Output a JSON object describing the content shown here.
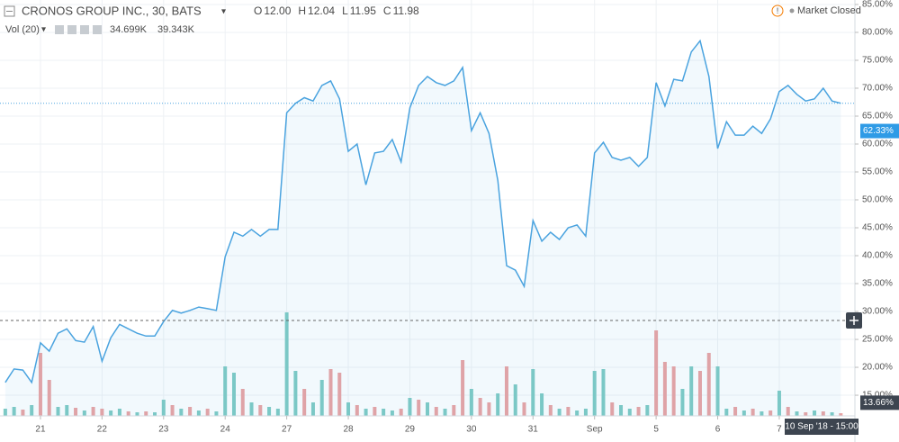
{
  "chart_data": {
    "type": "line",
    "title": "CRONOS GROUP INC., 30, BATS",
    "ohlc": [
      {
        "name": "O",
        "value": "12.00"
      },
      {
        "name": "H",
        "value": "12.04"
      },
      {
        "name": "L",
        "value": "11.95"
      },
      {
        "name": "C",
        "value": "11.98"
      }
    ],
    "status": "Market Closed",
    "volume_title": "Vol (20)",
    "volume_readout": [
      {
        "text": "34.699K",
        "color": "#e57373"
      },
      {
        "text": "39.343K",
        "color": "#f0a04b"
      }
    ],
    "x": [
      0,
      1,
      2,
      3,
      4,
      5,
      6,
      7,
      8,
      9,
      10,
      11,
      12,
      13,
      14,
      15,
      16,
      17,
      18,
      19,
      20,
      21,
      22,
      23,
      24,
      25,
      26,
      27,
      28,
      29,
      30,
      31,
      32,
      33,
      34,
      35,
      36,
      37,
      38,
      39,
      40,
      41,
      42,
      43,
      44,
      45,
      46,
      47,
      48,
      49,
      50,
      51,
      52,
      53,
      54,
      55,
      56,
      57,
      58,
      59,
      60,
      61,
      62,
      63,
      64,
      65,
      66,
      67,
      68,
      69,
      70,
      71,
      72,
      73,
      74,
      75,
      76,
      77,
      78,
      79,
      80,
      81,
      82,
      83,
      84,
      85,
      86,
      87,
      88,
      89,
      90,
      91,
      92,
      93,
      94,
      95
    ],
    "xlim": [
      -0.6,
      96.6
    ],
    "xticks": [
      {
        "value": 4,
        "label": "21"
      },
      {
        "value": 11,
        "label": "22"
      },
      {
        "value": 18,
        "label": "23"
      },
      {
        "value": 25,
        "label": "24"
      },
      {
        "value": 32,
        "label": "27"
      },
      {
        "value": 39,
        "label": "28"
      },
      {
        "value": 46,
        "label": "29"
      },
      {
        "value": 53,
        "label": "30"
      },
      {
        "value": 60,
        "label": "31"
      },
      {
        "value": 67,
        "label": "Sep"
      },
      {
        "value": 74,
        "label": "5"
      },
      {
        "value": 81,
        "label": "6"
      },
      {
        "value": 88,
        "label": "7"
      }
    ],
    "ylim": [
      11.3,
      85.8
    ],
    "yticks": [
      {
        "value": 15,
        "label": "15.00%"
      },
      {
        "value": 20,
        "label": "20.00%"
      },
      {
        "value": 25,
        "label": "25.00%"
      },
      {
        "value": 30,
        "label": "30.00%"
      },
      {
        "value": 35,
        "label": "35.00%"
      },
      {
        "value": 40,
        "label": "40.00%"
      },
      {
        "value": 45,
        "label": "45.00%"
      },
      {
        "value": 50,
        "label": "50.00%"
      },
      {
        "value": 55,
        "label": "55.00%"
      },
      {
        "value": 60,
        "label": "60.00%"
      },
      {
        "value": 65,
        "label": "65.00%"
      },
      {
        "value": 70,
        "label": "70.00%"
      },
      {
        "value": 75,
        "label": "75.00%"
      },
      {
        "value": 80,
        "label": "80.00%"
      },
      {
        "value": 85,
        "label": "85.00%"
      }
    ],
    "series": [
      {
        "color": "#4aa3df",
        "values": [
          17.3,
          19.7,
          19.5,
          17.3,
          24.4,
          22.9,
          26.1,
          26.9,
          24.8,
          24.5,
          27.3,
          21.1,
          25.3,
          27.7,
          26.9,
          26.1,
          25.6,
          25.6,
          28.2,
          30.2,
          29.7,
          30.2,
          30.8,
          30.5,
          30.2,
          39.8,
          44.2,
          43.5,
          44.7,
          43.5,
          44.7,
          44.7,
          65.6,
          67.3,
          68.3,
          67.7,
          70.5,
          71.3,
          68.1,
          58.7,
          60.0,
          52.7,
          58.4,
          58.7,
          60.8,
          56.8,
          66.5,
          70.5,
          72.1,
          71.0,
          70.5,
          71.3,
          73.7,
          62.4,
          65.6,
          61.9,
          53.5,
          38.2,
          37.4,
          34.5,
          46.3,
          42.6,
          44.2,
          42.9,
          45.0,
          45.5,
          43.5,
          58.4,
          60.3,
          57.6,
          57.1,
          57.6,
          56.0,
          57.6,
          71.0,
          66.8,
          71.6,
          71.3,
          76.5,
          78.5,
          72.1,
          59.2,
          64.0,
          61.6,
          61.6,
          63.2,
          61.9,
          64.5,
          69.4,
          70.5,
          68.9,
          67.7,
          68.1,
          70.0,
          67.7,
          67.3
        ]
      }
    ],
    "volume": {
      "ylim": [
        0,
        600
      ],
      "up_color": "#7fcbc4",
      "down_color": "#eba3a3",
      "values": [
        40,
        50,
        35,
        60,
        350,
        200,
        50,
        60,
        45,
        30,
        50,
        40,
        30,
        40,
        25,
        20,
        25,
        20,
        90,
        60,
        40,
        50,
        30,
        40,
        25,
        275,
        240,
        150,
        75,
        60,
        50,
        40,
        575,
        250,
        150,
        75,
        200,
        260,
        240,
        75,
        60,
        40,
        50,
        40,
        30,
        40,
        100,
        90,
        75,
        50,
        40,
        60,
        310,
        150,
        100,
        75,
        125,
        275,
        175,
        75,
        260,
        125,
        60,
        40,
        50,
        30,
        40,
        250,
        260,
        75,
        60,
        40,
        50,
        60,
        475,
        300,
        275,
        150,
        275,
        250,
        350,
        275,
        40,
        50,
        30,
        40,
        25,
        30,
        140,
        50,
        25,
        20,
        30,
        25,
        20,
        15
      ],
      "direction": [
        "up",
        "up",
        "down",
        "up",
        "down",
        "down",
        "up",
        "up",
        "down",
        "up",
        "down",
        "down",
        "up",
        "up",
        "down",
        "up",
        "down",
        "up",
        "up",
        "down",
        "up",
        "down",
        "up",
        "down",
        "up",
        "up",
        "up",
        "down",
        "up",
        "down",
        "up",
        "up",
        "up",
        "up",
        "down",
        "up",
        "up",
        "down",
        "down",
        "up",
        "down",
        "up",
        "down",
        "up",
        "up",
        "down",
        "up",
        "down",
        "up",
        "down",
        "up",
        "down",
        "down",
        "up",
        "down",
        "down",
        "up",
        "down",
        "up",
        "down",
        "up",
        "up",
        "down",
        "up",
        "down",
        "up",
        "up",
        "up",
        "up",
        "down",
        "up",
        "up",
        "down",
        "up",
        "down",
        "down",
        "down",
        "up",
        "up",
        "down",
        "down",
        "up",
        "up",
        "down",
        "up",
        "down",
        "up",
        "down",
        "up",
        "down",
        "up",
        "down",
        "up",
        "down",
        "up",
        "down"
      ]
    },
    "badges": [
      {
        "value": 62.33,
        "label": "62.33%",
        "color": "#2f9be6"
      },
      {
        "value": 13.66,
        "label": "13.66%",
        "color": "#3d4550"
      }
    ],
    "crosshair_time": "10 Sep '18 - 15:00",
    "grid": true
  }
}
